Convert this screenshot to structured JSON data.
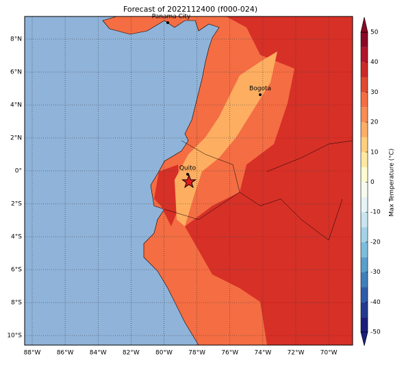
{
  "title": "Forecast of 2022112400 (f000-024)",
  "map": {
    "lon_ticks": [
      {
        "value": -88,
        "label": "88°W"
      },
      {
        "value": -86,
        "label": "86°W"
      },
      {
        "value": -84,
        "label": "84°W"
      },
      {
        "value": -82,
        "label": "82°W"
      },
      {
        "value": -80,
        "label": "80°W"
      },
      {
        "value": -78,
        "label": "78°W"
      },
      {
        "value": -76,
        "label": "76°W"
      },
      {
        "value": -74,
        "label": "74°W"
      },
      {
        "value": -72,
        "label": "72°W"
      },
      {
        "value": -70,
        "label": "70°W"
      }
    ],
    "lat_ticks": [
      {
        "value": 8,
        "label": "8°N"
      },
      {
        "value": 6,
        "label": "6°N"
      },
      {
        "value": 4,
        "label": "4°N"
      },
      {
        "value": 2,
        "label": "2°N"
      },
      {
        "value": 0,
        "label": "0°"
      },
      {
        "value": -2,
        "label": "2°S"
      },
      {
        "value": -4,
        "label": "4°S"
      },
      {
        "value": -6,
        "label": "6°S"
      },
      {
        "value": -8,
        "label": "8°S"
      },
      {
        "value": -10,
        "label": "10°S"
      }
    ],
    "cities": [
      "Panama City",
      "Bogota",
      "Quito"
    ]
  },
  "colorbar": {
    "label": "Max Temperature (°C)",
    "range": [
      -50,
      50
    ],
    "ticks": [
      50,
      40,
      30,
      20,
      10,
      0,
      -10,
      -20,
      -30,
      -40,
      -50
    ],
    "colors": [
      "#1b1f7a",
      "#243a8f",
      "#2f5ca8",
      "#3f7fba",
      "#5a9ecb",
      "#7dbcdc",
      "#a4d3e7",
      "#c9e6f0",
      "#e6f4f7",
      "#f7fbf0",
      "#fffbd0",
      "#fee9a0",
      "#fdcf7e",
      "#fcae67",
      "#f98c52",
      "#f46d43",
      "#e04a30",
      "#cc2a26",
      "#b0152a",
      "#8a0a26"
    ]
  }
}
